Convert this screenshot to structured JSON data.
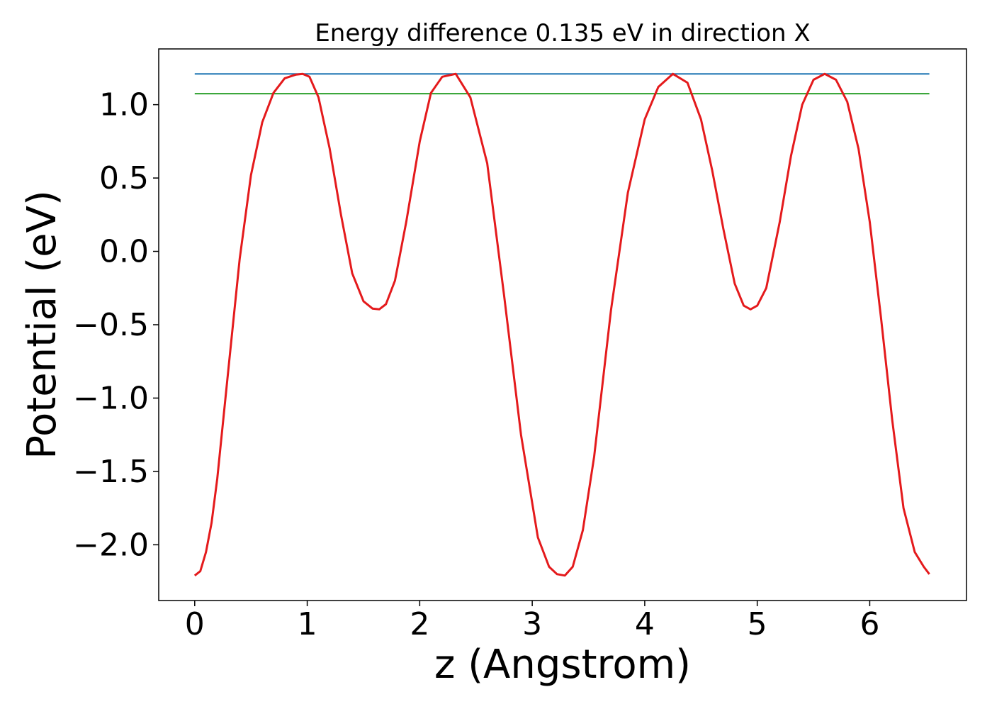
{
  "chart_data": {
    "type": "line",
    "title": "Energy difference 0.135 eV in direction X",
    "xlabel": "z (Angstrom)",
    "ylabel": "Potential (eV)",
    "xlim": [
      -0.32,
      6.86
    ],
    "ylim": [
      -2.38,
      1.38
    ],
    "xticks": [
      0,
      1,
      2,
      3,
      4,
      5,
      6
    ],
    "xtick_labels": [
      "0",
      "1",
      "2",
      "3",
      "4",
      "5",
      "6"
    ],
    "yticks": [
      -2.0,
      -1.5,
      -1.0,
      -0.5,
      0.0,
      0.5,
      1.0
    ],
    "ytick_labels": [
      "−2.0",
      "−1.5",
      "−1.0",
      "−0.5",
      "0.0",
      "0.5",
      "1.0"
    ],
    "grid": false,
    "series": [
      {
        "color": "#1f77b4",
        "x": [
          0,
          6.53
        ],
        "y": [
          1.21,
          1.21
        ]
      },
      {
        "color": "#2ca02c",
        "x": [
          0,
          6.53
        ],
        "y": [
          1.075,
          1.075
        ]
      },
      {
        "color": "#e41a1c",
        "x": [
          0,
          0.05,
          0.1,
          0.15,
          0.2,
          0.3,
          0.4,
          0.5,
          0.6,
          0.7,
          0.8,
          0.9,
          0.96,
          1.02,
          1.1,
          1.2,
          1.3,
          1.4,
          1.5,
          1.58,
          1.64,
          1.7,
          1.78,
          1.88,
          2.0,
          2.1,
          2.2,
          2.32,
          2.45,
          2.6,
          2.75,
          2.9,
          3.05,
          3.15,
          3.22,
          3.29,
          3.36,
          3.45,
          3.55,
          3.7,
          3.85,
          4.0,
          4.12,
          4.25,
          4.38,
          4.5,
          4.6,
          4.7,
          4.8,
          4.88,
          4.94,
          5.0,
          5.08,
          5.2,
          5.3,
          5.4,
          5.5,
          5.6,
          5.7,
          5.8,
          5.9,
          6.0,
          6.1,
          6.2,
          6.3,
          6.4,
          6.48,
          6.53
        ],
        "y": [
          -2.21,
          -2.18,
          -2.05,
          -1.85,
          -1.55,
          -0.8,
          -0.05,
          0.52,
          0.88,
          1.08,
          1.18,
          1.205,
          1.21,
          1.19,
          1.05,
          0.7,
          0.25,
          -0.15,
          -0.34,
          -0.39,
          -0.395,
          -0.36,
          -0.2,
          0.2,
          0.75,
          1.08,
          1.19,
          1.21,
          1.05,
          0.6,
          -0.3,
          -1.25,
          -1.95,
          -2.15,
          -2.2,
          -2.21,
          -2.15,
          -1.9,
          -1.4,
          -0.4,
          0.4,
          0.9,
          1.12,
          1.21,
          1.15,
          0.9,
          0.55,
          0.15,
          -0.22,
          -0.37,
          -0.395,
          -0.37,
          -0.25,
          0.2,
          0.65,
          1.0,
          1.17,
          1.21,
          1.17,
          1.02,
          0.7,
          0.2,
          -0.45,
          -1.15,
          -1.75,
          -2.05,
          -2.15,
          -2.2
        ]
      }
    ]
  }
}
